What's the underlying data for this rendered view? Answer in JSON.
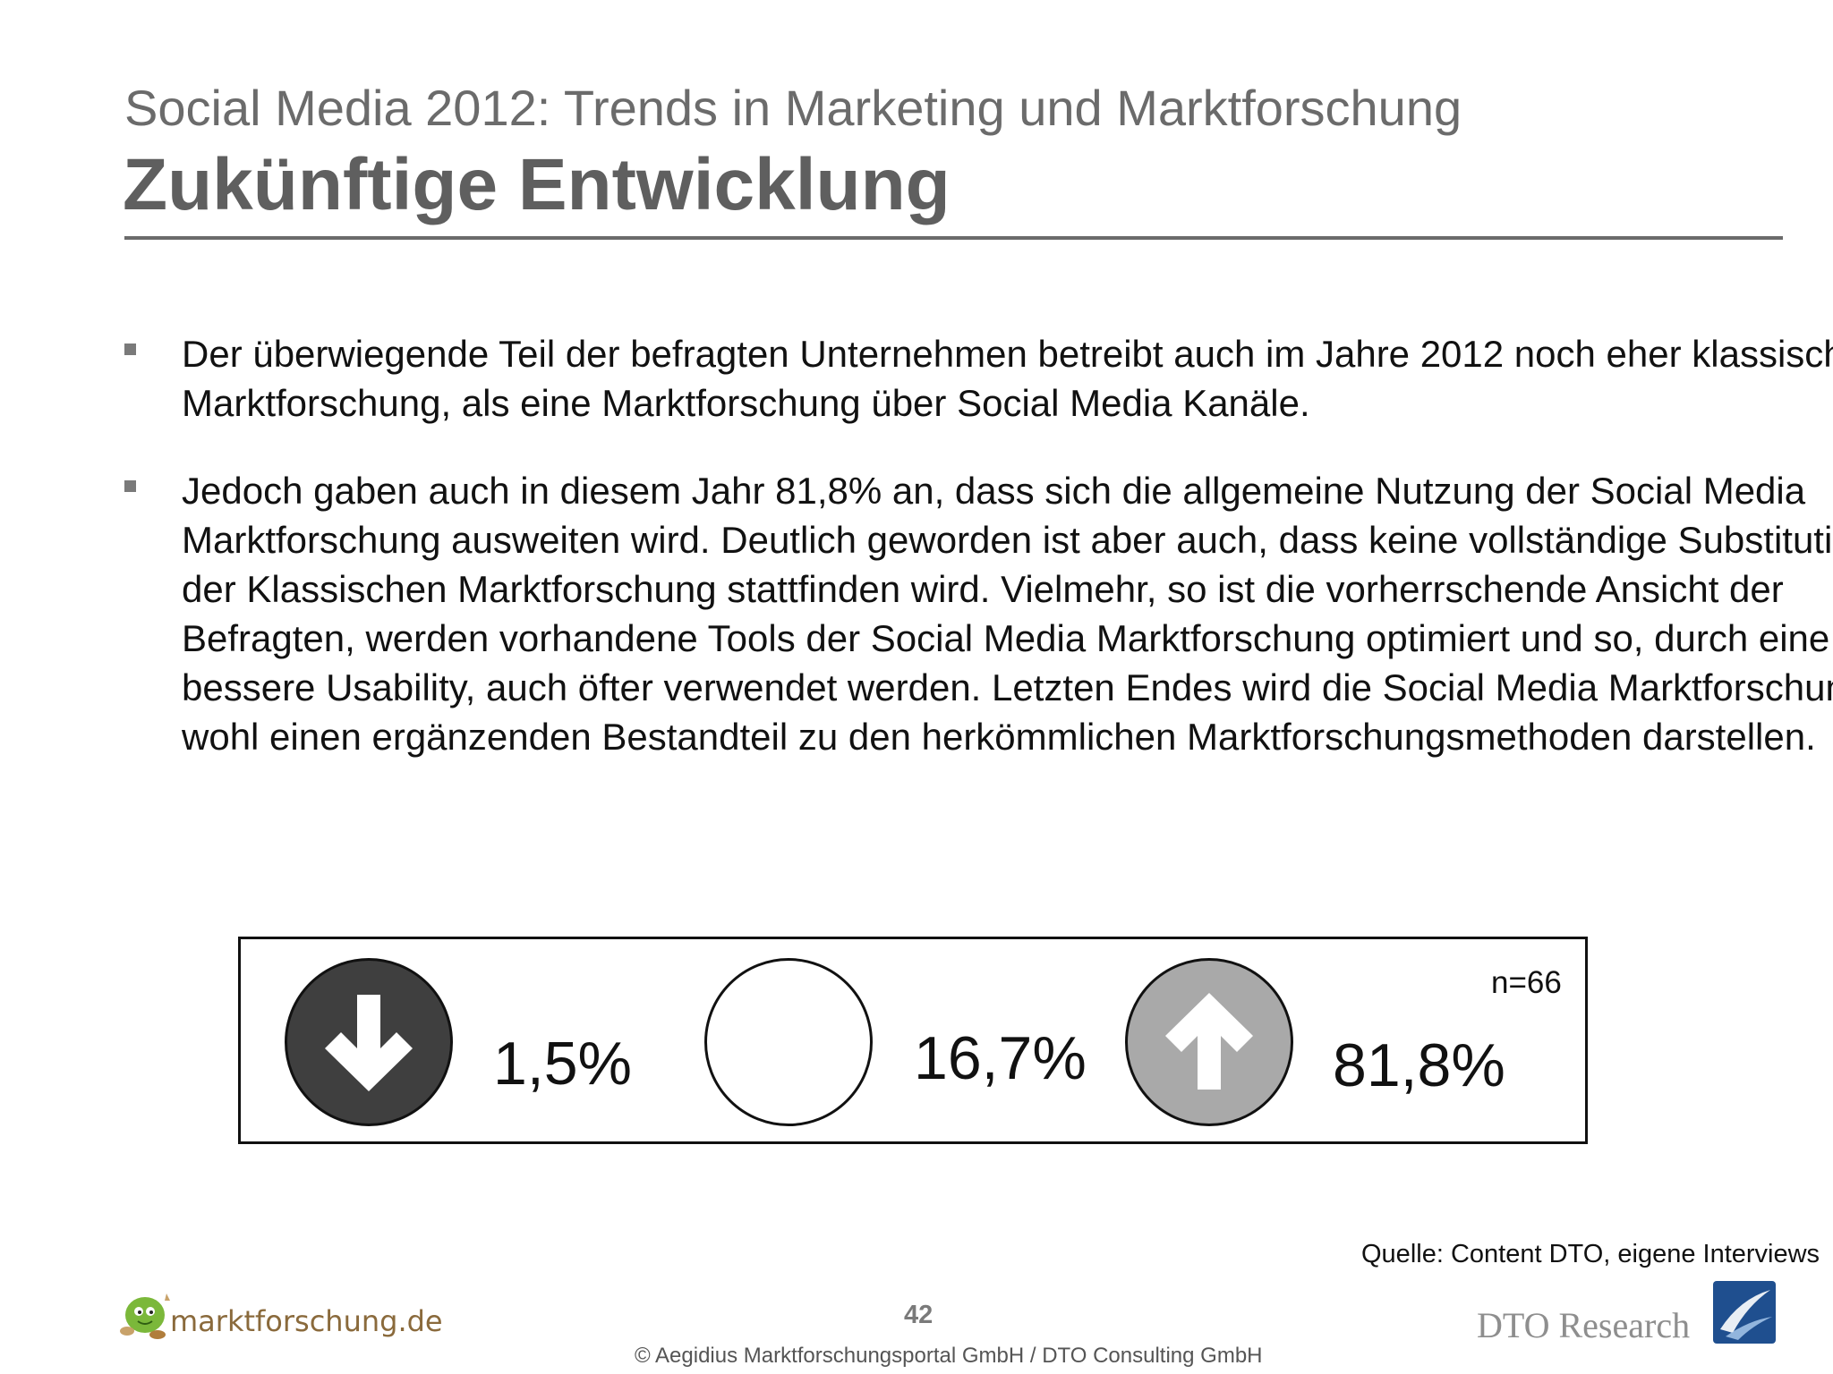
{
  "header": {
    "supertitle": "Social Media 2012: Trends in Marketing und Marktforschung",
    "title": "Zukünftige Entwicklung"
  },
  "bullets": [
    {
      "text": "Der überwiegende Teil der befragten Unternehmen betreibt auch im Jahre 2012 noch eher klassische Marktforschung, als eine Marktforschung über Social Media Kanäle."
    },
    {
      "text": "Jedoch gaben auch in diesem Jahr 81,8% an, dass sich die allgemeine Nutzung der Social Media Marktforschung ausweiten wird. Deutlich geworden ist aber auch, dass keine vollständige Substitution der Klassischen Marktforschung stattfinden wird. Vielmehr, so ist die vorherrschende Ansicht der Befragten, werden vorhandene Tools der Social Media Marktforschung optimiert und so, durch eine bessere Usability, auch öfter verwendet werden. Letzten Endes wird die Social Media Marktforschung wohl einen ergänzenden Bestandteil zu den herkömmlichen Marktforschungsmethoden darstellen."
    }
  ],
  "results": {
    "sample_size": "n=66",
    "items": [
      {
        "icon": "arrow-down-icon",
        "value_label": "1,5%",
        "value": 1.5,
        "color": "#3f3f3f"
      },
      {
        "icon": "empty-circle-icon",
        "value_label": "16,7%",
        "value": 16.7,
        "color": "#ffffff"
      },
      {
        "icon": "arrow-up-icon",
        "value_label": "81,8%",
        "value": 81.8,
        "color": "#a9a9a9"
      }
    ]
  },
  "footer": {
    "source": "Quelle: Content DTO, eigene Interviews",
    "page_number": "42",
    "copyright": "© Aegidius Marktforschungsportal GmbH / DTO Consulting GmbH",
    "logo_left_text": "marktforschung.de",
    "logo_right_text": "DTO Research"
  }
}
